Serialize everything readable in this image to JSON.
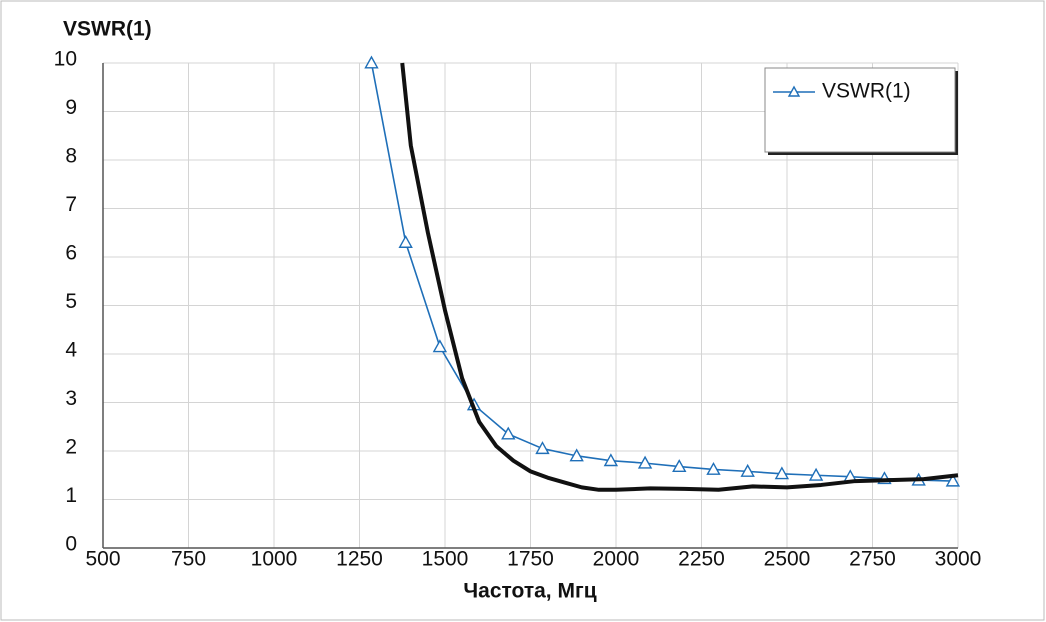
{
  "chart_data": {
    "type": "line",
    "title": "VSWR(1)",
    "x_label": "Частота, Мгц",
    "series": [
      {
        "name": "VSWR(1)",
        "color": "#1f6fb8",
        "marker": "triangle",
        "x": [
          1285,
          1385,
          1485,
          1585,
          1685,
          1785,
          1885,
          1985,
          2085,
          2185,
          2285,
          2385,
          2485,
          2585,
          2685,
          2785,
          2885,
          2985
        ],
        "values": [
          10,
          6.3,
          4.15,
          2.95,
          2.35,
          2.05,
          1.9,
          1.8,
          1.75,
          1.68,
          1.62,
          1.58,
          1.53,
          1.5,
          1.47,
          1.43,
          1.4,
          1.38
        ]
      },
      {
        "color": "#111111",
        "x": [
          1375,
          1400,
          1450,
          1500,
          1550,
          1600,
          1650,
          1700,
          1750,
          1800,
          1850,
          1900,
          1950,
          2000,
          2100,
          2200,
          2300,
          2400,
          2500,
          2600,
          2700,
          2800,
          2900,
          3000
        ],
        "values": [
          10,
          8.3,
          6.5,
          4.9,
          3.5,
          2.6,
          2.1,
          1.8,
          1.58,
          1.45,
          1.35,
          1.25,
          1.2,
          1.2,
          1.23,
          1.22,
          1.2,
          1.27,
          1.25,
          1.3,
          1.38,
          1.4,
          1.42,
          1.5
        ]
      }
    ],
    "xlim": [
      500,
      3000
    ],
    "xticks": [
      500,
      750,
      1000,
      1250,
      1500,
      1750,
      2000,
      2250,
      2500,
      2750,
      3000
    ],
    "ylim": [
      0,
      10
    ],
    "yticks": [
      0,
      1,
      2,
      3,
      4,
      5,
      6,
      7,
      8,
      9,
      10
    ],
    "grid": true,
    "legend": "upper right"
  }
}
